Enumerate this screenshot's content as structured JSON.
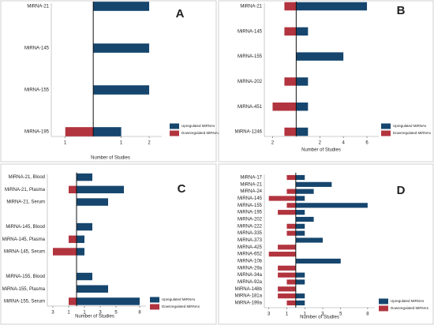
{
  "chart_data": [
    {
      "type": "bar",
      "orientation": "horizontal",
      "label": "A",
      "xlabel": "Number of Studies",
      "categories": [
        "MiRNA-21",
        "MiRNA-145",
        "MiRNA-155",
        "MiRNA-195"
      ],
      "series": [
        {
          "name": "Upregulated MiRNAs",
          "color": "#16466e",
          "values": [
            2,
            2,
            2,
            1
          ]
        },
        {
          "name": "Downregulated MiRNAs",
          "color": "#b1343e",
          "values": [
            null,
            null,
            null,
            -1
          ]
        }
      ],
      "xlim": [
        -1.5,
        2.45
      ],
      "xticks": [
        {
          "value": -1,
          "label": "1"
        },
        1,
        2
      ]
    },
    {
      "type": "bar",
      "orientation": "horizontal",
      "label": "B",
      "xlabel": "Number of Studies",
      "categories": [
        "MiRNA-21",
        "MiRNA-145",
        "MiRNA-155",
        "MiRNA-202",
        "MiRNA-451",
        "MiRNA-1246"
      ],
      "series": [
        {
          "name": "Upregulated MiRNAs",
          "color": "#16466e",
          "values": [
            6,
            1,
            4,
            1,
            1,
            1
          ]
        },
        {
          "name": "Downregulated MiRNAs",
          "color": "#b1343e",
          "values": [
            -1,
            -1,
            null,
            -1,
            -2,
            -1
          ]
        }
      ],
      "xlim": [
        -2.7,
        7
      ],
      "xticks": [
        {
          "value": -2,
          "label": "2"
        },
        2,
        4,
        6
      ]
    },
    {
      "type": "bar",
      "orientation": "horizontal",
      "label": "C",
      "xlabel": "Number of Studies",
      "categories": [
        "MiRNA-21, Blood",
        "MiRNA-21, Plasma",
        "MiRNA-21, Serum",
        null,
        "MiRNA-145, Blood",
        "MiRNA-145, Plasma",
        "MiRNA-145, Serum",
        null,
        "MiRNA-155, Blood",
        "MiRNA-155, Plasma",
        "MiRNA-155, Serum"
      ],
      "series": [
        {
          "name": "Upregulated MiRNAs",
          "color": "#16466e",
          "values": [
            2,
            6,
            4,
            null,
            2,
            1,
            1,
            null,
            2,
            4,
            8
          ]
        },
        {
          "name": "Downregulated MiRNAs",
          "color": "#b1343e",
          "values": [
            null,
            -1,
            null,
            null,
            null,
            -1,
            -3,
            null,
            null,
            null,
            -1
          ]
        }
      ],
      "xlim": [
        -3.7,
        8.8
      ],
      "xticks": [
        {
          "value": -3,
          "label": "3"
        },
        {
          "value": -1,
          "label": "1"
        },
        1,
        3,
        5,
        8
      ]
    },
    {
      "type": "bar",
      "orientation": "horizontal",
      "label": "D",
      "xlabel": "Number of Studies",
      "categories": [
        "MiRNA-17",
        "MiRNA-21",
        "MiRNA-24",
        "MiRNA-145",
        "MiRNA-155",
        "MiRNA-195",
        "MiRNA-202",
        "MiRNA-222",
        "MiRNA-335",
        "MiRNA-373",
        "MiRNA-425",
        "MiRNA-652",
        "MiRNA-10b",
        "MiRNA-29a",
        "MiRNA-34a",
        "MiRNA-92a",
        "MiRNA-148b",
        "MiRNA-181a",
        "MiRNA-199a"
      ],
      "series": [
        {
          "name": "Upregulated MiRNAs",
          "color": "#16466e",
          "values": [
            1,
            4,
            2,
            1,
            8,
            1,
            2,
            1,
            1,
            3,
            null,
            null,
            5,
            null,
            1,
            1,
            null,
            1,
            1
          ]
        },
        {
          "name": "Downregulated MiRNAs",
          "color": "#b1343e",
          "values": [
            -1,
            null,
            -1,
            -3,
            -1,
            -2,
            null,
            -1,
            -1,
            null,
            -2,
            -3,
            null,
            -2,
            -2,
            -1,
            -2,
            -2,
            -1
          ]
        }
      ],
      "xlim": [
        -3.5,
        8.8
      ],
      "xticks": [
        {
          "value": -3,
          "label": "3"
        },
        {
          "value": -1,
          "label": "1"
        },
        1,
        3,
        5,
        8
      ]
    }
  ]
}
